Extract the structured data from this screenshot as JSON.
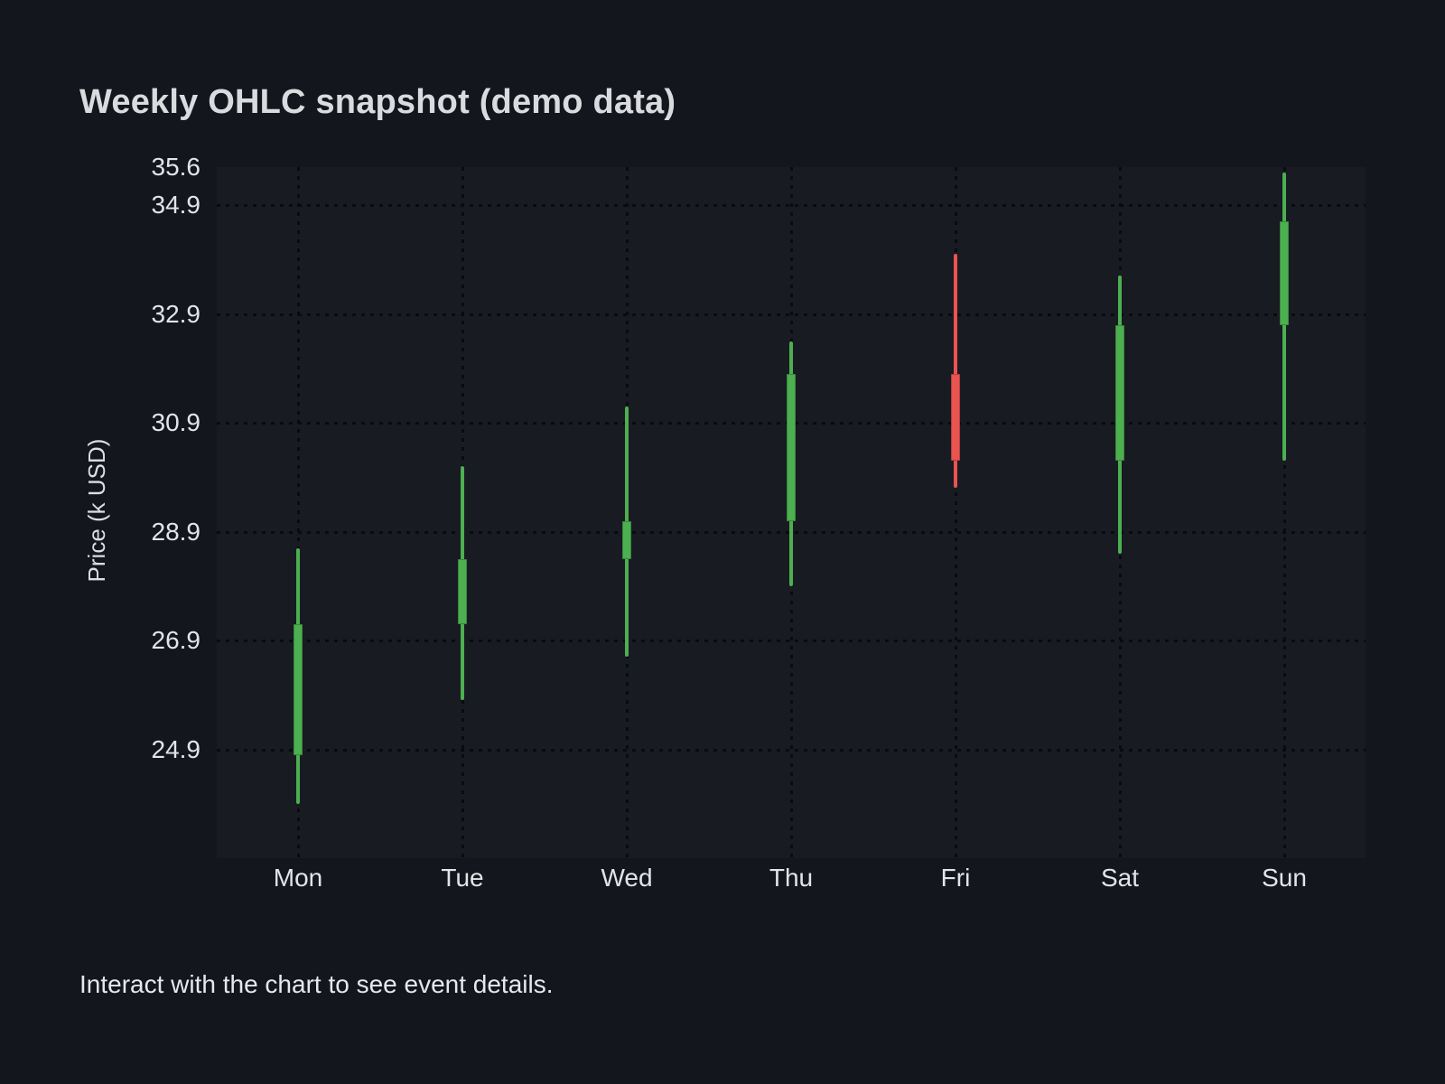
{
  "page": {
    "footer": "Interact with the chart to see event details."
  },
  "chart_data": {
    "type": "candlestick",
    "title": "Weekly OHLC snapshot (demo data)",
    "ylabel": "Price (k USD)",
    "xlabel": "",
    "categories": [
      "Mon",
      "Tue",
      "Wed",
      "Thu",
      "Fri",
      "Sat",
      "Sun"
    ],
    "ohlc": [
      {
        "day": "Mon",
        "open": 24.8,
        "high": 28.6,
        "low": 23.9,
        "close": 27.2,
        "direction": "up"
      },
      {
        "day": "Tue",
        "open": 27.2,
        "high": 30.1,
        "low": 25.8,
        "close": 28.4,
        "direction": "up"
      },
      {
        "day": "Wed",
        "open": 28.4,
        "high": 31.2,
        "low": 26.6,
        "close": 29.1,
        "direction": "up"
      },
      {
        "day": "Thu",
        "open": 29.1,
        "high": 32.4,
        "low": 27.9,
        "close": 31.8,
        "direction": "up"
      },
      {
        "day": "Fri",
        "open": 31.8,
        "high": 34.0,
        "low": 29.7,
        "close": 30.2,
        "direction": "down"
      },
      {
        "day": "Sat",
        "open": 30.2,
        "high": 33.6,
        "low": 28.5,
        "close": 32.7,
        "direction": "up"
      },
      {
        "day": "Sun",
        "open": 32.7,
        "high": 35.5,
        "low": 30.2,
        "close": 34.6,
        "direction": "up"
      }
    ],
    "ytick_labels": [
      "35.6",
      "34.9",
      "32.9",
      "30.9",
      "28.9",
      "26.9",
      "24.9"
    ],
    "yticks": [
      35.6,
      34.9,
      32.9,
      30.9,
      28.9,
      26.9,
      24.9
    ],
    "ylim": [
      22.9,
      35.6
    ],
    "grid": "dotted horizontal and vertical",
    "legend": "none",
    "colors": {
      "up": "#4caf50",
      "down": "#e95350",
      "grid": "#0a0b10",
      "plot_background": "#191b22",
      "page_background": "#14161d",
      "text": "#e2e4e8"
    }
  }
}
